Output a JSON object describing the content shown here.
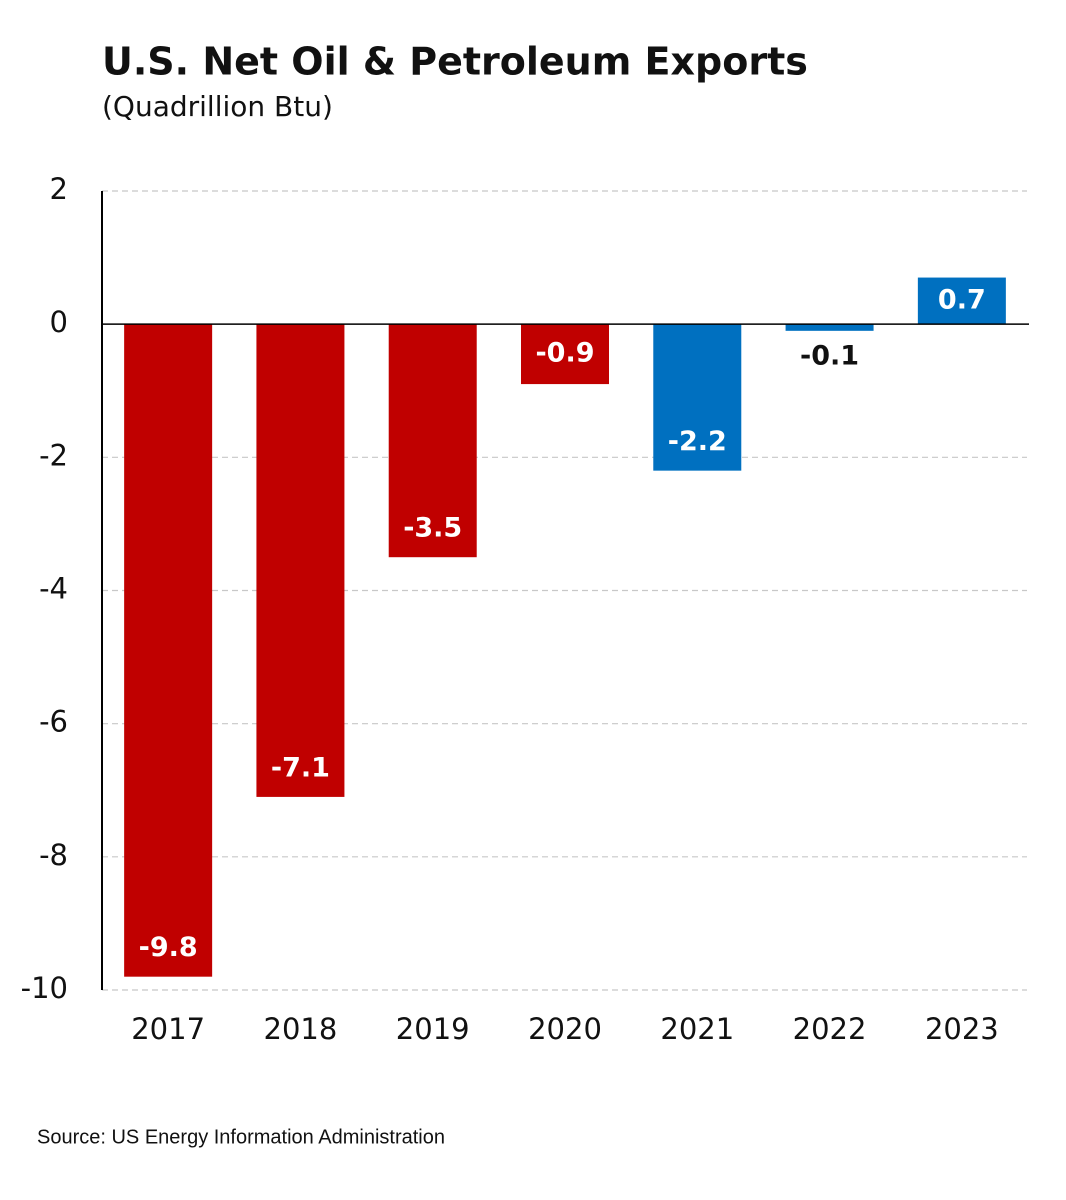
{
  "chart_data": {
    "type": "bar",
    "title": "U.S. Net Oil & Petroleum Exports",
    "subtitle": "(Quadrillion Btu)",
    "source": "Source: US Energy Information Administration",
    "categories": [
      "2017",
      "2018",
      "2019",
      "2020",
      "2021",
      "2022",
      "2023"
    ],
    "values": [
      -9.8,
      -7.1,
      -3.5,
      -0.9,
      -2.2,
      -0.1,
      0.7
    ],
    "colors": [
      "#c00000",
      "#c00000",
      "#c00000",
      "#c00000",
      "#0070c0",
      "#0070c0",
      "#0070c0"
    ],
    "ylim": [
      -10,
      2
    ],
    "yticks": [
      -10,
      -8,
      -6,
      -4,
      -2,
      0,
      2
    ],
    "grid": true
  }
}
